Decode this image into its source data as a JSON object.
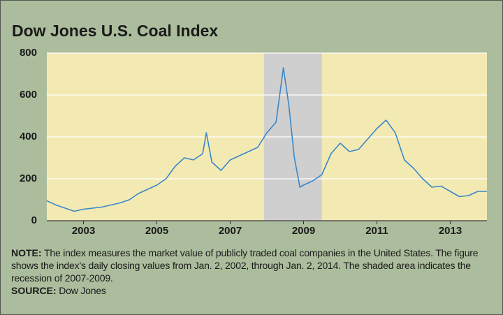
{
  "chart_data": {
    "type": "line",
    "title": "Dow Jones U.S. Coal Index",
    "x": [
      2002.0,
      2002.25,
      2002.5,
      2002.75,
      2003.0,
      2003.25,
      2003.5,
      2003.75,
      2004.0,
      2004.25,
      2004.5,
      2004.75,
      2005.0,
      2005.25,
      2005.5,
      2005.75,
      2006.0,
      2006.25,
      2006.35,
      2006.5,
      2006.75,
      2007.0,
      2007.25,
      2007.5,
      2007.75,
      2008.0,
      2008.25,
      2008.45,
      2008.6,
      2008.75,
      2008.9,
      2009.0,
      2009.25,
      2009.5,
      2009.75,
      2010.0,
      2010.25,
      2010.5,
      2010.75,
      2011.0,
      2011.25,
      2011.5,
      2011.75,
      2012.0,
      2012.25,
      2012.5,
      2012.75,
      2013.0,
      2013.25,
      2013.5,
      2013.75,
      2014.0
    ],
    "values": [
      95,
      75,
      60,
      45,
      55,
      60,
      65,
      75,
      85,
      100,
      130,
      150,
      170,
      200,
      260,
      300,
      290,
      320,
      420,
      280,
      240,
      290,
      310,
      330,
      350,
      420,
      470,
      730,
      550,
      300,
      160,
      170,
      190,
      220,
      320,
      370,
      330,
      340,
      390,
      440,
      480,
      420,
      290,
      250,
      200,
      160,
      165,
      140,
      115,
      120,
      140,
      140
    ],
    "color": "#3a87c9",
    "xlim": [
      2002,
      2014
    ],
    "xticks": [
      2003,
      2005,
      2007,
      2009,
      2011,
      2013
    ],
    "ylim": [
      0,
      800
    ],
    "yticks": [
      0,
      200,
      400,
      600,
      800
    ],
    "grid": true,
    "shaded_region": [
      2007.92,
      2009.5
    ],
    "note_label": "NOTE:",
    "note": "The index measures the market value of publicly traded coal companies in the United States. The figure shows the index’s daily closing values from Jan. 2, 2002, through Jan. 2, 2014. The shaded area indicates the recession of 2007-2009.",
    "source_label": "SOURCE:",
    "source": "Dow Jones"
  }
}
